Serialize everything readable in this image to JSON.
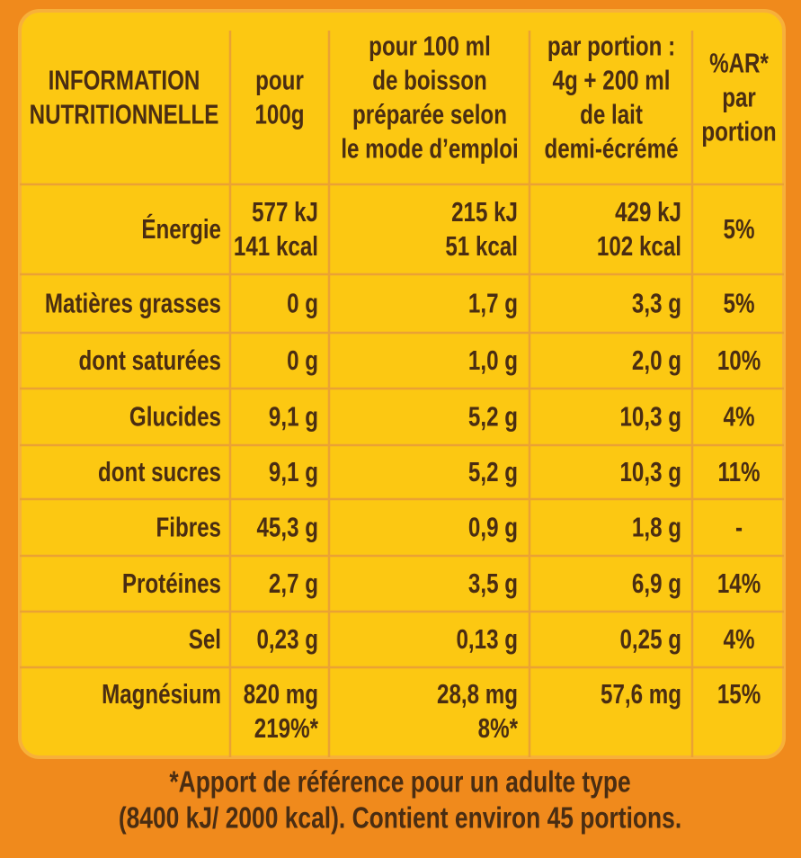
{
  "table": {
    "header": [
      [
        "INFORMATION",
        "NUTRITIONNELLE"
      ],
      [
        "pour",
        "100g"
      ],
      [
        "pour 100 ml",
        "de boisson",
        "préparée selon",
        "le mode d’emploi"
      ],
      [
        "par portion :",
        "4g + 200 ml",
        "de lait",
        "demi-écrémé"
      ],
      [
        "%AR*",
        "par",
        "portion"
      ]
    ],
    "rows": [
      [
        [
          "Énergie"
        ],
        [
          "577 kJ",
          "141 kcal"
        ],
        [
          "215 kJ",
          "51 kcal"
        ],
        [
          "429 kJ",
          "102 kcal"
        ],
        [
          "5%"
        ]
      ],
      [
        [
          "Matières grasses"
        ],
        [
          "0 g"
        ],
        [
          "1,7 g"
        ],
        [
          "3,3 g"
        ],
        [
          "5%"
        ]
      ],
      [
        [
          "dont saturées"
        ],
        [
          "0 g"
        ],
        [
          "1,0 g"
        ],
        [
          "2,0 g"
        ],
        [
          "10%"
        ]
      ],
      [
        [
          "Glucides"
        ],
        [
          "9,1 g"
        ],
        [
          "5,2 g"
        ],
        [
          "10,3 g"
        ],
        [
          "4%"
        ]
      ],
      [
        [
          "dont sucres"
        ],
        [
          "9,1 g"
        ],
        [
          "5,2 g"
        ],
        [
          "10,3 g"
        ],
        [
          "11%"
        ]
      ],
      [
        [
          "Fibres"
        ],
        [
          "45,3 g"
        ],
        [
          "0,9 g"
        ],
        [
          "1,8 g"
        ],
        [
          "-"
        ]
      ],
      [
        [
          "Protéines"
        ],
        [
          "2,7 g"
        ],
        [
          "3,5 g"
        ],
        [
          "6,9 g"
        ],
        [
          "14%"
        ]
      ],
      [
        [
          "Sel"
        ],
        [
          "0,23 g"
        ],
        [
          "0,13 g"
        ],
        [
          "0,25 g"
        ],
        [
          "4%"
        ]
      ],
      [
        [
          "Magnésium"
        ],
        [
          "820 mg",
          "219%*"
        ],
        [
          "28,8 mg",
          "8%*"
        ],
        [
          "57,6 mg"
        ],
        [
          "15%"
        ]
      ]
    ]
  },
  "footnote": [
    "*Apport de référence pour un adulte type",
    "(8400 kJ/ 2000 kcal). Contient environ 45 portions."
  ]
}
